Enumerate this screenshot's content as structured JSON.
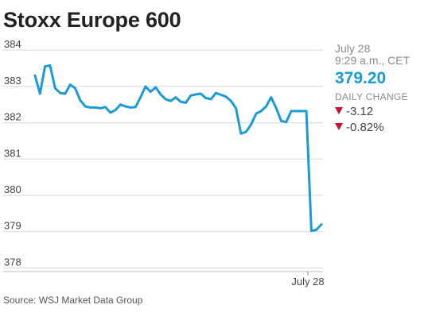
{
  "title": "Stoxx Europe 600",
  "summary": {
    "date": "July 28",
    "time": "9:29 a.m., CET",
    "last_value": "379.20",
    "daily_change_label": "DAILY CHANGE",
    "change_points": "-3.12",
    "change_percent": "-0.82%"
  },
  "source": "Source: WSJ Market Data Group",
  "colors": {
    "line": "#1a9bd7",
    "down": "#c8102e",
    "grid": "#d7d7d7"
  },
  "chart_data": {
    "type": "line",
    "title": "Stoxx Europe 600",
    "xlabel": "",
    "ylabel": "",
    "x_tick_labels": [
      "July 28"
    ],
    "y_ticks": [
      384,
      383,
      382,
      381,
      380,
      379,
      378
    ],
    "ylim": [
      377.9,
      384.2
    ],
    "grid": "horizontal",
    "series": [
      {
        "values": [
          383.3,
          382.8,
          383.55,
          383.58,
          382.95,
          382.82,
          382.8,
          383.05,
          382.95,
          382.62,
          382.45,
          382.42,
          382.42,
          382.4,
          382.43,
          382.28,
          382.35,
          382.5,
          382.45,
          382.42,
          382.43,
          382.7,
          383.0,
          382.85,
          382.98,
          382.78,
          382.65,
          382.6,
          382.7,
          382.58,
          382.55,
          382.75,
          382.78,
          382.8,
          382.68,
          382.65,
          382.82,
          382.77,
          382.72,
          382.6,
          382.4,
          381.7,
          381.75,
          381.95,
          382.25,
          382.32,
          382.45,
          382.7,
          382.4,
          382.05,
          382.02,
          382.32,
          382.32,
          382.32,
          382.32,
          379.02,
          379.05,
          379.2
        ]
      }
    ]
  }
}
